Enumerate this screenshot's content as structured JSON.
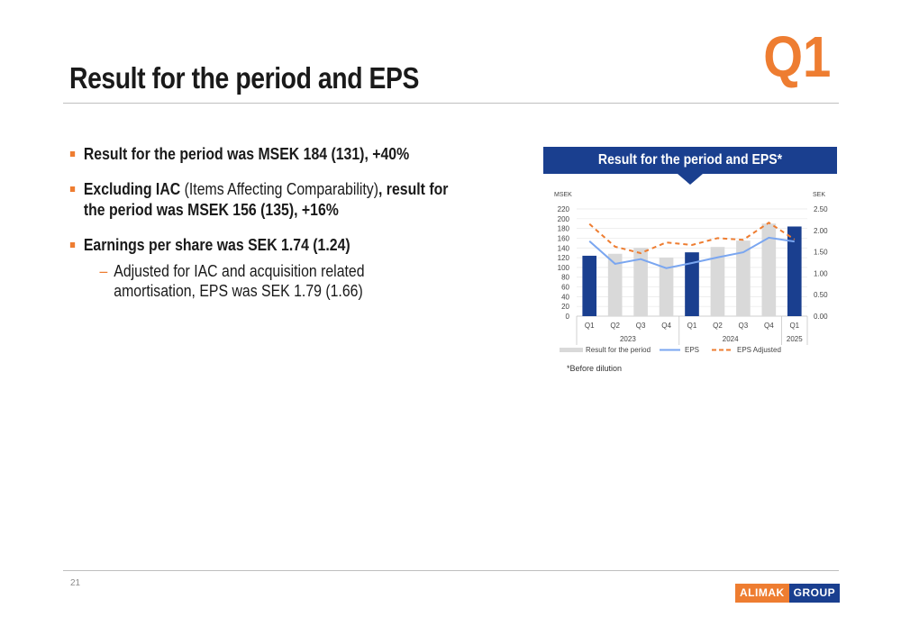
{
  "slide": {
    "title": "Result for the period and EPS",
    "quarter_badge": "Q1",
    "page_number": "21",
    "footnote": "*Before dilution",
    "chart_heading": "Result for the period and EPS*"
  },
  "bullets": [
    {
      "bold": "Result for the period was MSEK 184 (131), +40%",
      "normal": "",
      "bold_tail": ""
    },
    {
      "bold": "Excluding IAC",
      "normal": " (Items Affecting Comparability)",
      "bold_tail": ", result for the period was MSEK 156 (135), +16%"
    },
    {
      "bold": "Earnings per share was SEK 1.74 (1.24)",
      "normal": "",
      "bold_tail": ""
    }
  ],
  "sub_bullet": "Adjusted for IAC and acquisition related amortisation, EPS was SEK 1.79 (1.66)",
  "logo": {
    "part1": "ALIMAK",
    "part2": "GROUP"
  },
  "colors": {
    "accent": "#ee7d31",
    "brand": "#1a3f8f",
    "bar_grey": "#d9d9d9",
    "eps_line": "#7aa6f0"
  },
  "chart_data": {
    "type": "bar",
    "categories": [
      "Q1",
      "Q2",
      "Q3",
      "Q4",
      "Q1",
      "Q2",
      "Q3",
      "Q4",
      "Q1"
    ],
    "year_groups": [
      {
        "label": "2023",
        "span": [
          0,
          3
        ]
      },
      {
        "label": "2024",
        "span": [
          4,
          7
        ]
      },
      {
        "label": "2025",
        "span": [
          8,
          8
        ]
      }
    ],
    "highlighted_indices": [
      0,
      4,
      8
    ],
    "y_left_label": "MSEK",
    "y_right_label": "SEK",
    "y_left_ticks": [
      "0",
      "20",
      "40",
      "60",
      "80",
      "100",
      "120",
      "140",
      "160",
      "180",
      "200",
      "220"
    ],
    "y_right_ticks": [
      "0.00",
      "0.50",
      "1.00",
      "1.50",
      "2.00",
      "2.50"
    ],
    "ylim_left": [
      0,
      220
    ],
    "ylim_right": [
      0,
      2.5
    ],
    "series": [
      {
        "name": "Result for the period",
        "kind": "bar",
        "axis": "left",
        "values": [
          124,
          128,
          140,
          120,
          131,
          142,
          155,
          190,
          184
        ]
      },
      {
        "name": "EPS",
        "kind": "line",
        "axis": "right",
        "values": [
          1.75,
          1.22,
          1.33,
          1.12,
          1.24,
          1.37,
          1.49,
          1.83,
          1.74
        ]
      },
      {
        "name": "EPS Adjusted",
        "kind": "dashed-line",
        "axis": "right",
        "values": [
          2.15,
          1.62,
          1.47,
          1.72,
          1.66,
          1.82,
          1.78,
          2.18,
          1.79
        ]
      }
    ],
    "legend_position": "bottom",
    "grid": true
  }
}
